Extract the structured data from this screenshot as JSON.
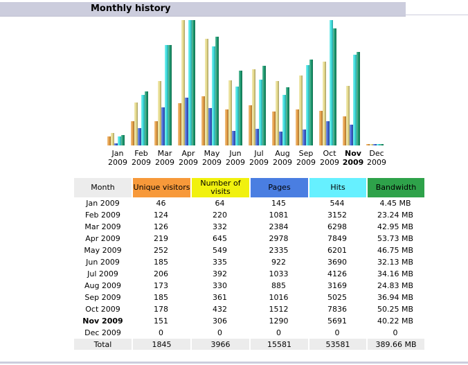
{
  "section_title": "Monthly history",
  "colors": {
    "visitors": "#e8a046",
    "visits": "#e8dc8c",
    "pages": "#3f63d4",
    "hits": "#3fe1e1",
    "bandwidth": "#1a9b70"
  },
  "chart_data": {
    "type": "bar",
    "title": "Monthly history",
    "categories": [
      "Jan 2009",
      "Feb 2009",
      "Mar 2009",
      "Apr 2009",
      "May 2009",
      "Jun 2009",
      "Jul 2009",
      "Aug 2009",
      "Sep 2009",
      "Oct 2009",
      "Nov 2009",
      "Dec 2009"
    ],
    "highlight_category": "Nov 2009",
    "series": [
      {
        "name": "Unique visitors",
        "values": [
          46,
          124,
          126,
          219,
          252,
          185,
          206,
          173,
          185,
          178,
          151,
          0
        ]
      },
      {
        "name": "Number of visits",
        "values": [
          64,
          220,
          332,
          645,
          549,
          335,
          392,
          330,
          361,
          432,
          306,
          0
        ]
      },
      {
        "name": "Pages",
        "values": [
          145,
          1081,
          2384,
          2978,
          2335,
          922,
          1033,
          885,
          1016,
          1512,
          1290,
          0
        ]
      },
      {
        "name": "Hits",
        "values": [
          544,
          3152,
          6298,
          7849,
          6201,
          3690,
          4126,
          3169,
          5025,
          7836,
          5691,
          0
        ]
      },
      {
        "name": "Bandwidth (MB)",
        "values": [
          4.45,
          23.24,
          42.95,
          53.73,
          46.75,
          32.13,
          34.16,
          24.83,
          36.94,
          50.25,
          40.22,
          0
        ]
      }
    ]
  },
  "table": {
    "headers": [
      "Month",
      "Unique visitors",
      "Number of visits",
      "Pages",
      "Hits",
      "Bandwidth"
    ],
    "rows": [
      {
        "month": "Jan 2009",
        "visitors": "46",
        "visits": "64",
        "pages": "145",
        "hits": "544",
        "bandwidth": "4.45 MB"
      },
      {
        "month": "Feb 2009",
        "visitors": "124",
        "visits": "220",
        "pages": "1081",
        "hits": "3152",
        "bandwidth": "23.24 MB"
      },
      {
        "month": "Mar 2009",
        "visitors": "126",
        "visits": "332",
        "pages": "2384",
        "hits": "6298",
        "bandwidth": "42.95 MB"
      },
      {
        "month": "Apr 2009",
        "visitors": "219",
        "visits": "645",
        "pages": "2978",
        "hits": "7849",
        "bandwidth": "53.73 MB"
      },
      {
        "month": "May 2009",
        "visitors": "252",
        "visits": "549",
        "pages": "2335",
        "hits": "6201",
        "bandwidth": "46.75 MB"
      },
      {
        "month": "Jun 2009",
        "visitors": "185",
        "visits": "335",
        "pages": "922",
        "hits": "3690",
        "bandwidth": "32.13 MB"
      },
      {
        "month": "Jul 2009",
        "visitors": "206",
        "visits": "392",
        "pages": "1033",
        "hits": "4126",
        "bandwidth": "34.16 MB"
      },
      {
        "month": "Aug 2009",
        "visitors": "173",
        "visits": "330",
        "pages": "885",
        "hits": "3169",
        "bandwidth": "24.83 MB"
      },
      {
        "month": "Sep 2009",
        "visitors": "185",
        "visits": "361",
        "pages": "1016",
        "hits": "5025",
        "bandwidth": "36.94 MB"
      },
      {
        "month": "Oct 2009",
        "visitors": "178",
        "visits": "432",
        "pages": "1512",
        "hits": "7836",
        "bandwidth": "50.25 MB"
      },
      {
        "month": "Nov 2009",
        "visitors": "151",
        "visits": "306",
        "pages": "1290",
        "hits": "5691",
        "bandwidth": "40.22 MB"
      },
      {
        "month": "Dec 2009",
        "visitors": "0",
        "visits": "0",
        "pages": "0",
        "hits": "0",
        "bandwidth": "0"
      }
    ],
    "total": {
      "label": "Total",
      "visitors": "1845",
      "visits": "3966",
      "pages": "15581",
      "hits": "53581",
      "bandwidth": "389.66 MB"
    }
  }
}
